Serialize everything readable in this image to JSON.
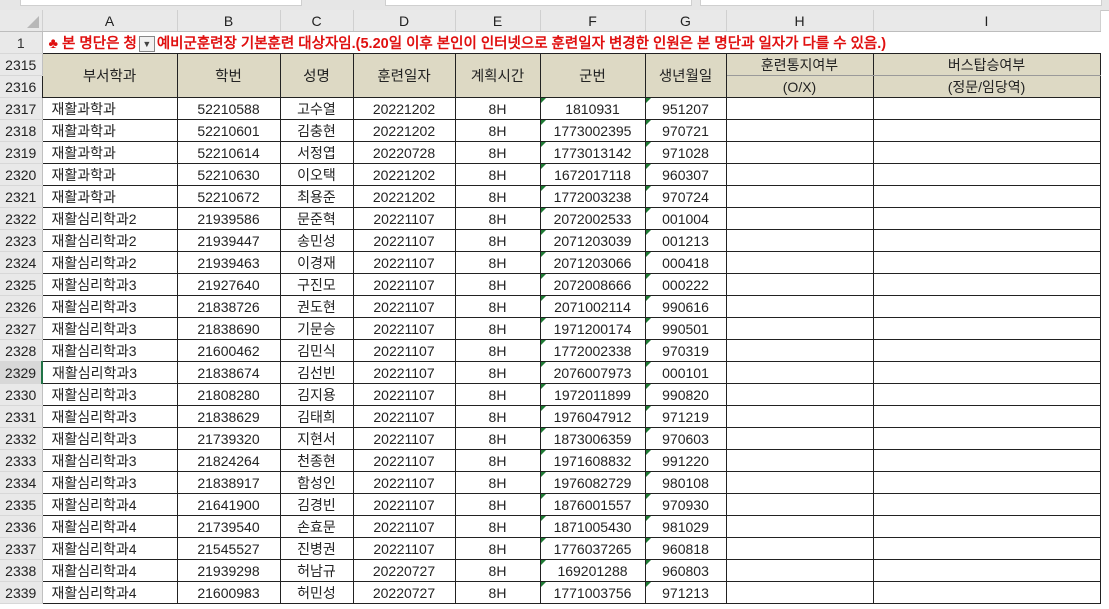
{
  "columns": [
    "A",
    "B",
    "C",
    "D",
    "E",
    "F",
    "G",
    "H",
    "I"
  ],
  "title_row": {
    "row_number": "1",
    "icon": "club-icon",
    "text_before": "♣ 본 명단은 청",
    "text_after": "예비군훈련장 기본훈련 대상자임.(5.20일 이후 본인이 인터넷으로 훈련일자 변경한 인원은 본 명단과 일자가 다를 수 있음.)",
    "filter_icon": "filter-dropdown-icon"
  },
  "header": {
    "row_numbers": [
      "2315",
      "2316"
    ],
    "dept": "부서학과",
    "student_id": "학번",
    "name": "성명",
    "date": "훈련일자",
    "hours": "계획시간",
    "military_no": "군번",
    "birth": "생년월일",
    "notice_top": "훈련통지여부",
    "notice_bottom": "(O/X)",
    "bus_top": "버스탑승여부",
    "bus_bottom": "(정문/임당역)"
  },
  "header_fill": "#ddd9c4",
  "title_color": "#e01010",
  "rows": [
    {
      "n": "2317",
      "dept": "재활과학과",
      "id": "52210588",
      "name": "고수열",
      "date": "20221202",
      "hours": "8H",
      "mil": "1810931",
      "birth": "951207"
    },
    {
      "n": "2318",
      "dept": "재활과학과",
      "id": "52210601",
      "name": "김충현",
      "date": "20221202",
      "hours": "8H",
      "mil": "1773002395",
      "birth": "970721"
    },
    {
      "n": "2319",
      "dept": "재활과학과",
      "id": "52210614",
      "name": "서정엽",
      "date": "20220728",
      "hours": "8H",
      "mil": "1773013142",
      "birth": "971028"
    },
    {
      "n": "2320",
      "dept": "재활과학과",
      "id": "52210630",
      "name": "이오택",
      "date": "20221202",
      "hours": "8H",
      "mil": "1672017118",
      "birth": "960307"
    },
    {
      "n": "2321",
      "dept": "재활과학과",
      "id": "52210672",
      "name": "최용준",
      "date": "20221202",
      "hours": "8H",
      "mil": "1772003238",
      "birth": "970724"
    },
    {
      "n": "2322",
      "dept": "재활심리학과2",
      "id": "21939586",
      "name": "문준혁",
      "date": "20221107",
      "hours": "8H",
      "mil": "2072002533",
      "birth": "001004"
    },
    {
      "n": "2323",
      "dept": "재활심리학과2",
      "id": "21939447",
      "name": "송민성",
      "date": "20221107",
      "hours": "8H",
      "mil": "2071203039",
      "birth": "001213"
    },
    {
      "n": "2324",
      "dept": "재활심리학과2",
      "id": "21939463",
      "name": "이경재",
      "date": "20221107",
      "hours": "8H",
      "mil": "2071203066",
      "birth": "000418"
    },
    {
      "n": "2325",
      "dept": "재활심리학과3",
      "id": "21927640",
      "name": "구진모",
      "date": "20221107",
      "hours": "8H",
      "mil": "2072008666",
      "birth": "000222"
    },
    {
      "n": "2326",
      "dept": "재활심리학과3",
      "id": "21838726",
      "name": "권도현",
      "date": "20221107",
      "hours": "8H",
      "mil": "2071002114",
      "birth": "990616"
    },
    {
      "n": "2327",
      "dept": "재활심리학과3",
      "id": "21838690",
      "name": "기문승",
      "date": "20221107",
      "hours": "8H",
      "mil": "1971200174",
      "birth": "990501"
    },
    {
      "n": "2328",
      "dept": "재활심리학과3",
      "id": "21600462",
      "name": "김민식",
      "date": "20221107",
      "hours": "8H",
      "mil": "1772002338",
      "birth": "970319"
    },
    {
      "n": "2329",
      "dept": "재활심리학과3",
      "id": "21838674",
      "name": "김선빈",
      "date": "20221107",
      "hours": "8H",
      "mil": "2076007973",
      "birth": "000101"
    },
    {
      "n": "2330",
      "dept": "재활심리학과3",
      "id": "21808280",
      "name": "김지용",
      "date": "20221107",
      "hours": "8H",
      "mil": "1972011899",
      "birth": "990820"
    },
    {
      "n": "2331",
      "dept": "재활심리학과3",
      "id": "21838629",
      "name": "김태희",
      "date": "20221107",
      "hours": "8H",
      "mil": "1976047912",
      "birth": "971219"
    },
    {
      "n": "2332",
      "dept": "재활심리학과3",
      "id": "21739320",
      "name": "지현서",
      "date": "20221107",
      "hours": "8H",
      "mil": "1873006359",
      "birth": "970603"
    },
    {
      "n": "2333",
      "dept": "재활심리학과3",
      "id": "21824264",
      "name": "천종현",
      "date": "20221107",
      "hours": "8H",
      "mil": "1971608832",
      "birth": "991220"
    },
    {
      "n": "2334",
      "dept": "재활심리학과3",
      "id": "21838917",
      "name": "함성인",
      "date": "20221107",
      "hours": "8H",
      "mil": "1976082729",
      "birth": "980108"
    },
    {
      "n": "2335",
      "dept": "재활심리학과4",
      "id": "21641900",
      "name": "김경빈",
      "date": "20221107",
      "hours": "8H",
      "mil": "1876001557",
      "birth": "970930"
    },
    {
      "n": "2336",
      "dept": "재활심리학과4",
      "id": "21739540",
      "name": "손효문",
      "date": "20221107",
      "hours": "8H",
      "mil": "1871005430",
      "birth": "981029"
    },
    {
      "n": "2337",
      "dept": "재활심리학과4",
      "id": "21545527",
      "name": "진병권",
      "date": "20221107",
      "hours": "8H",
      "mil": "1776037265",
      "birth": "960818"
    },
    {
      "n": "2338",
      "dept": "재활심리학과4",
      "id": "21939298",
      "name": "허남규",
      "date": "20220727",
      "hours": "8H",
      "mil": "169201288",
      "birth": "960803"
    },
    {
      "n": "2339",
      "dept": "재활심리학과4",
      "id": "21600983",
      "name": "허민성",
      "date": "20220727",
      "hours": "8H",
      "mil": "1771003756",
      "birth": "971213"
    }
  ],
  "selected_row": "2329"
}
